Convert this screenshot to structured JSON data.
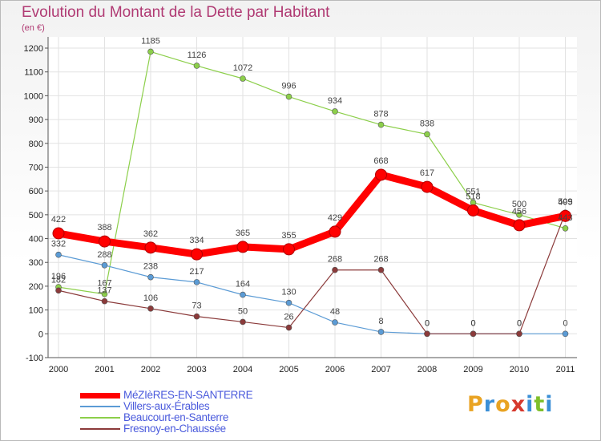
{
  "title": "Evolution du Montant de la Dette par Habitant",
  "unit": "(en €)",
  "logo": {
    "text": "Proxiti",
    "colors": [
      "#e9a322",
      "#3b8fd6",
      "#e9a322",
      "#d6392d",
      "#3b8fd6",
      "#7fbf2a",
      "#3b8fd6"
    ]
  },
  "chart_data": {
    "type": "line",
    "x": [
      "2000",
      "2001",
      "2002",
      "2003",
      "2004",
      "2005",
      "2006",
      "2007",
      "2008",
      "2009",
      "2010",
      "2011"
    ],
    "y_ticks": [
      "-100",
      "0",
      "100",
      "200",
      "300",
      "400",
      "500",
      "600",
      "700",
      "800",
      "900",
      "1000",
      "1100",
      "1200"
    ],
    "ylim": [
      -100,
      1200
    ],
    "grid": true,
    "legend_position": "bottom-left",
    "series": [
      {
        "name": "MéZIèRES-EN-SANTERRE",
        "color": "#ff0000",
        "values": [
          422,
          388,
          362,
          334,
          365,
          355,
          429,
          668,
          617,
          518,
          456,
          495
        ],
        "labels": [
          "422",
          "388",
          "362",
          "334",
          "365",
          "355",
          "429",
          "668",
          "617",
          "518",
          "456",
          "495"
        ]
      },
      {
        "name": "Villers-aux-Érables",
        "color": "#5b9bd5",
        "values": [
          332,
          288,
          238,
          217,
          164,
          130,
          48,
          8,
          0,
          0,
          0,
          0
        ],
        "labels": [
          "332",
          "288",
          "238",
          "217",
          "164",
          "130",
          "48",
          "8",
          "0",
          "0",
          "0",
          "0"
        ]
      },
      {
        "name": "Beaucourt-en-Santerre",
        "color": "#8ccf4a",
        "values": [
          196,
          167,
          1185,
          1126,
          1072,
          996,
          934,
          878,
          838,
          551,
          500,
          443
        ],
        "labels": [
          "196",
          "167",
          "1185",
          "1126",
          "1072",
          "996",
          "934",
          "878",
          "838",
          "551",
          "500",
          "443"
        ]
      },
      {
        "name": "Fresnoy-en-Chaussée",
        "color": "#8b3a3a",
        "values": [
          182,
          137,
          106,
          73,
          50,
          26,
          268,
          268,
          0,
          0,
          0,
          509
        ],
        "labels": [
          "182",
          "137",
          "106",
          "73",
          "50",
          "26",
          "268",
          "268",
          "0",
          "0",
          "0",
          "509"
        ]
      }
    ]
  }
}
